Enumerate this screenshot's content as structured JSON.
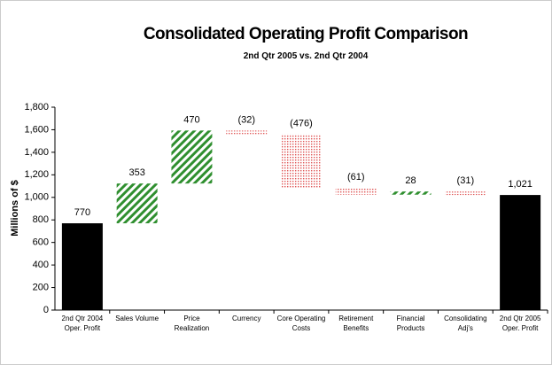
{
  "chart_data": {
    "type": "waterfall",
    "title": "Consolidated Operating Profit Comparison",
    "subtitle": "2nd Qtr 2005 vs. 2nd Qtr 2004",
    "y_label": "Millions of $",
    "categories": [
      [
        "2nd Qtr 2004",
        "Oper. Profit"
      ],
      [
        "Sales   Volume"
      ],
      [
        "Price",
        "Realization"
      ],
      [
        "Currency"
      ],
      [
        "Core Operating",
        "Costs"
      ],
      [
        "Retirement",
        "Benefits"
      ],
      [
        "Financial",
        "Products"
      ],
      [
        "Consolidating",
        "Adj's"
      ],
      [
        "2nd Qtr 2005",
        "Oper. Profit"
      ]
    ],
    "values": [
      770,
      353,
      470,
      -32,
      -476,
      -61,
      28,
      -31,
      1021
    ],
    "value_labels": [
      "770",
      "353",
      "470",
      "(32)",
      "(476)",
      "(61)",
      "28",
      "(31)",
      "1,021"
    ],
    "kinds": [
      "total",
      "increase",
      "increase",
      "decrease",
      "decrease",
      "decrease",
      "increase",
      "decrease",
      "total"
    ],
    "colors": {
      "total": "#000000",
      "increase": "url(#hatch)",
      "decrease": "url(#dots)"
    },
    "ylim": [
      0,
      1800
    ],
    "yticks": [
      0,
      200,
      400,
      600,
      800,
      {
        "value": 1000,
        "label": "1,000"
      },
      {
        "value": 1200,
        "label": "1,200"
      },
      {
        "value": 1400,
        "label": "1,400"
      },
      {
        "value": 1600,
        "label": "1,600"
      },
      {
        "value": 1800,
        "label": "1,800"
      }
    ],
    "grid": false
  }
}
